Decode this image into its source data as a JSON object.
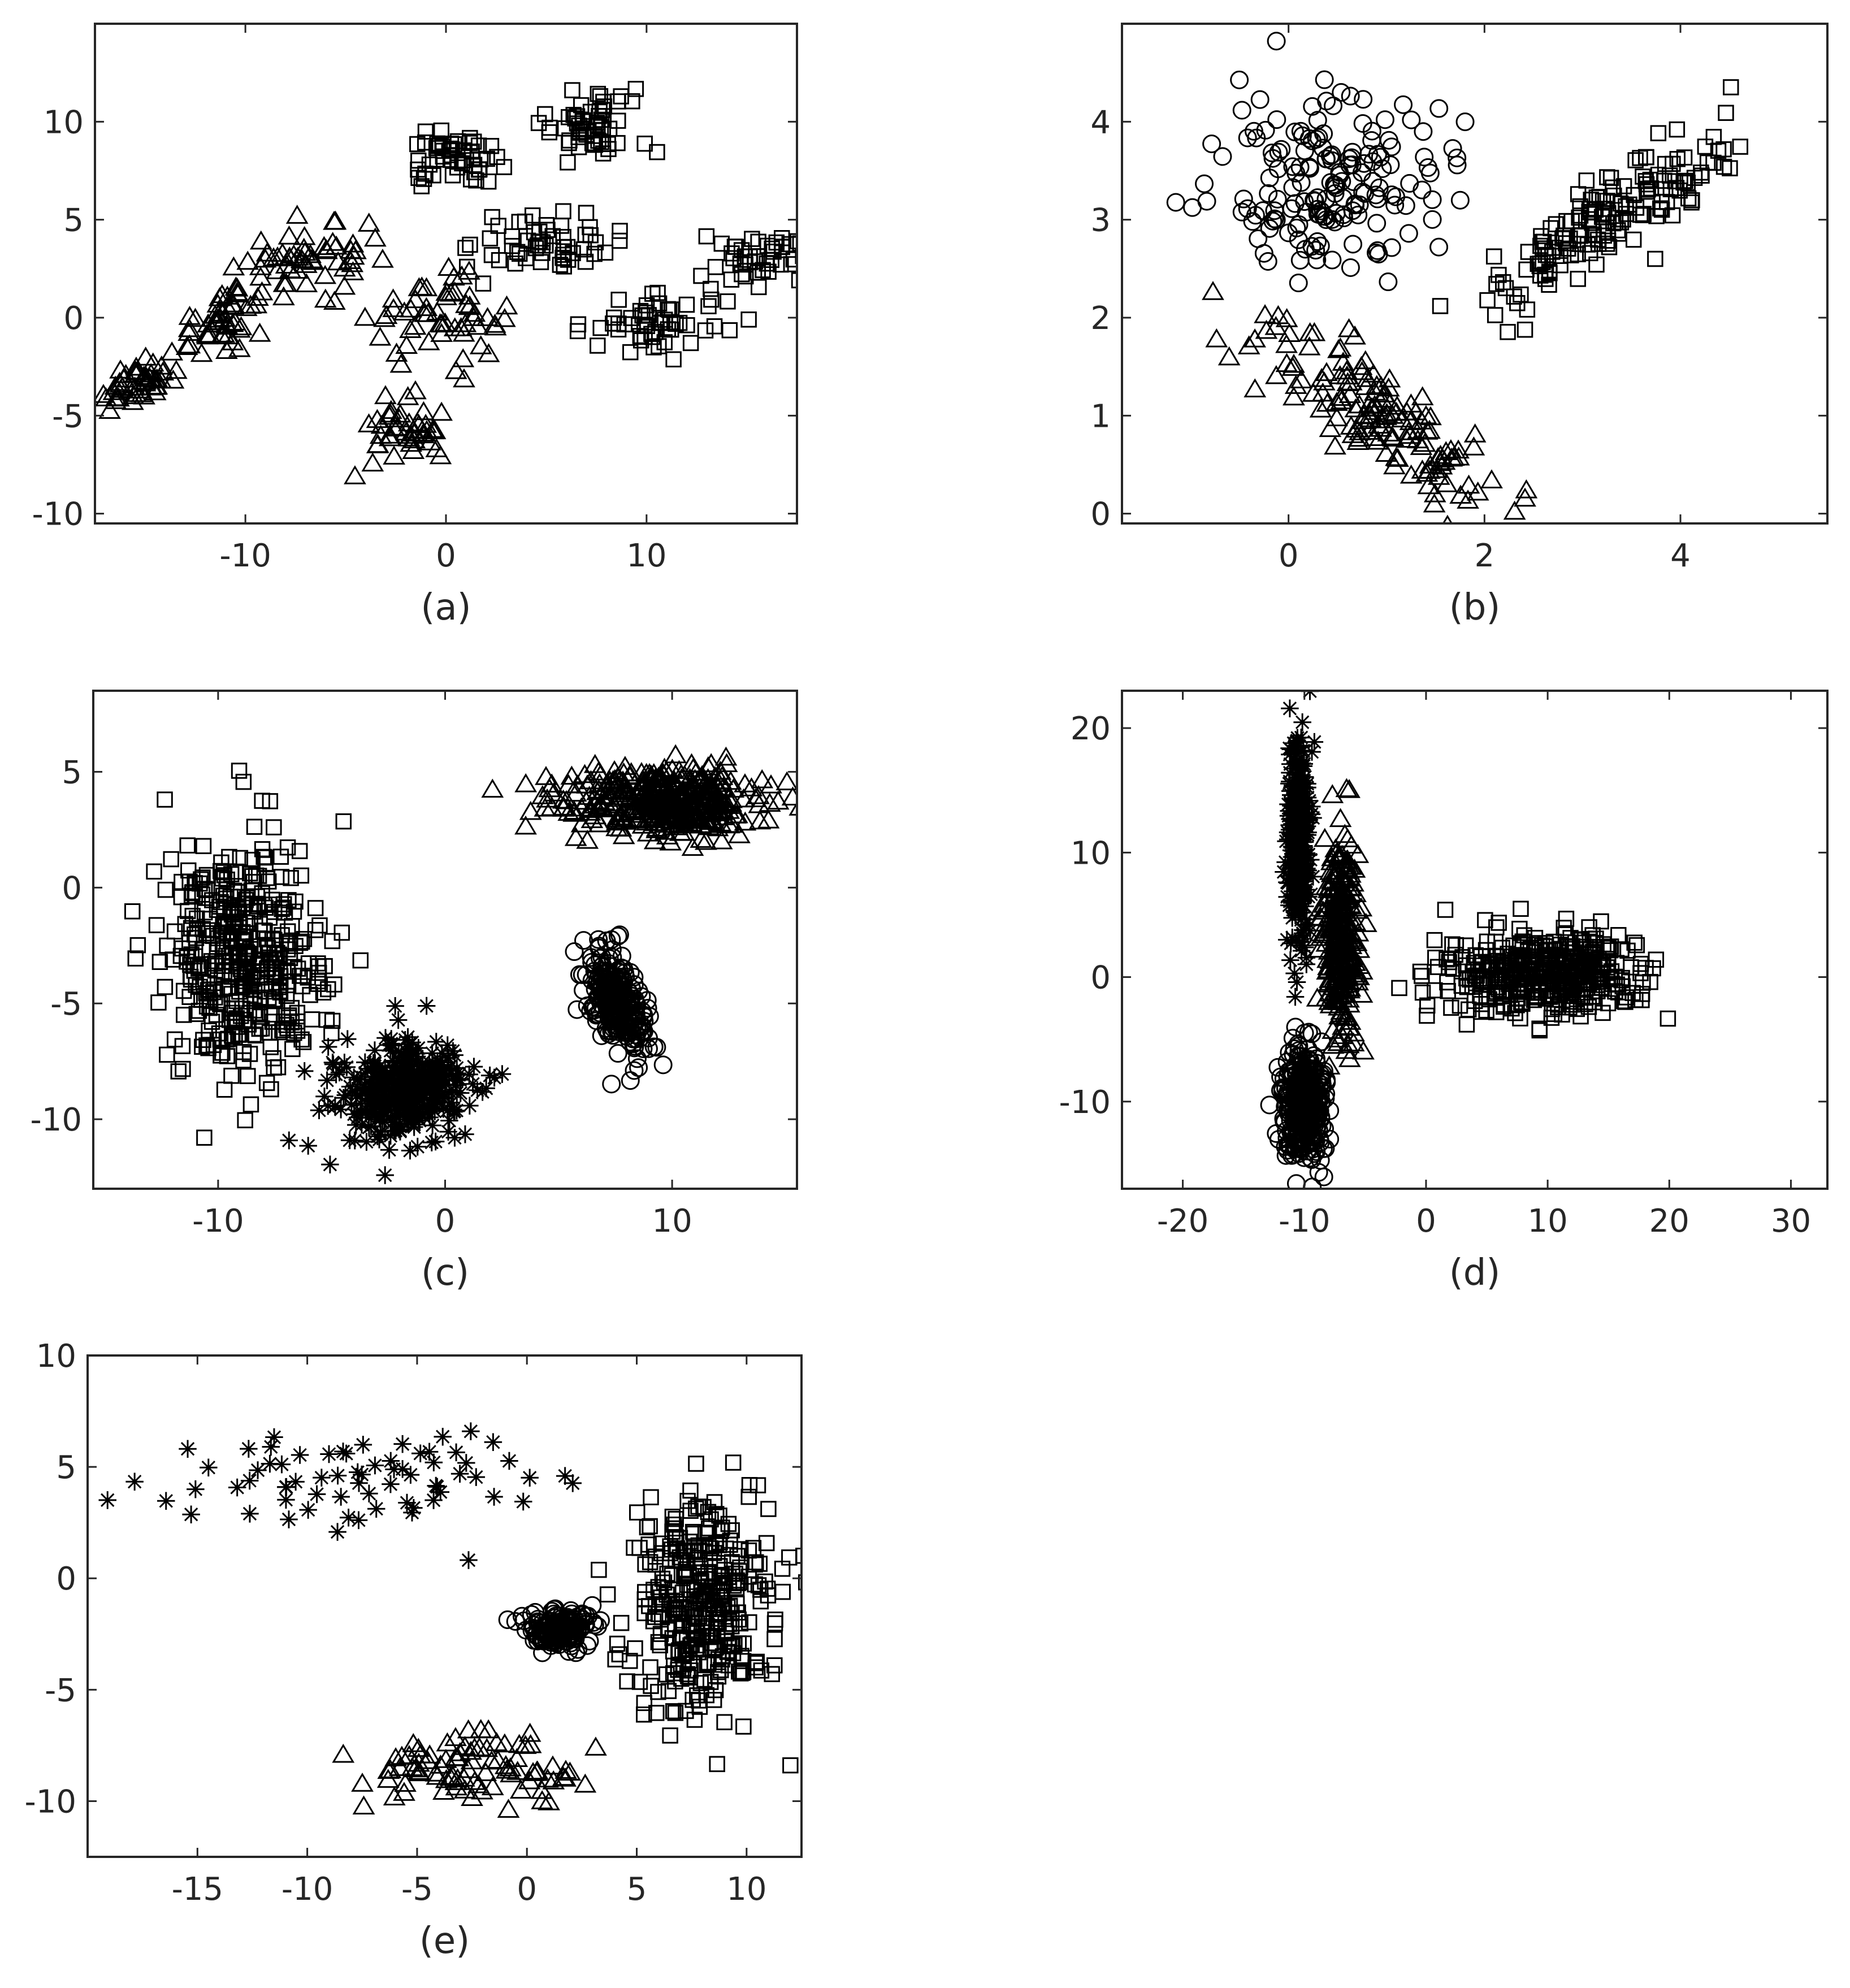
{
  "figure": {
    "background": "#ffffff",
    "marker_color": "#000000",
    "axis_color": "#262626"
  },
  "chart_data": [
    {
      "id": "a",
      "caption": "(a)",
      "type": "scatter",
      "xlim": [
        -17.5,
        17.5
      ],
      "ylim": [
        -10.5,
        15
      ],
      "xticks": [
        -10,
        0,
        10
      ],
      "yticks": [
        -10,
        -5,
        0,
        5,
        10
      ],
      "grid": false,
      "series": [
        {
          "marker": "triangle",
          "clusters": [
            {
              "cx": -15.5,
              "cy": -3.5,
              "sx": 1.1,
              "sy": 0.6,
              "rho": 0.4,
              "n": 45
            },
            {
              "cx": -11,
              "cy": 0.2,
              "sx": 1.3,
              "sy": 1.0,
              "rho": 0.6,
              "n": 50
            },
            {
              "cx": -6.5,
              "cy": 3.0,
              "sx": 1.7,
              "sy": 0.9,
              "rho": 0.3,
              "n": 55
            },
            {
              "cx": -0.5,
              "cy": 0.0,
              "sx": 1.6,
              "sy": 1.0,
              "rho": 0,
              "n": 55
            },
            {
              "cx": -2,
              "cy": -5.8,
              "sx": 1.3,
              "sy": 0.8,
              "rho": 0,
              "n": 45
            }
          ]
        },
        {
          "marker": "square",
          "clusters": [
            {
              "cx": 0.5,
              "cy": 8.0,
              "sx": 1.1,
              "sy": 0.7,
              "rho": 0,
              "n": 50
            },
            {
              "cx": 7.5,
              "cy": 10.0,
              "sx": 1.6,
              "sy": 0.8,
              "rho": 0,
              "n": 55
            },
            {
              "cx": 5.0,
              "cy": 3.8,
              "sx": 1.7,
              "sy": 0.9,
              "rho": 0,
              "n": 55
            },
            {
              "cx": 10.5,
              "cy": -0.3,
              "sx": 1.8,
              "sy": 0.7,
              "rho": 0,
              "n": 55
            },
            {
              "cx": 15.5,
              "cy": 3.2,
              "sx": 1.3,
              "sy": 0.8,
              "rho": 0.3,
              "n": 45
            }
          ]
        }
      ]
    },
    {
      "id": "b",
      "caption": "(b)",
      "type": "scatter",
      "xlim": [
        -1.7,
        5.5
      ],
      "ylim": [
        -0.1,
        5.0
      ],
      "xticks": [
        0,
        2,
        4
      ],
      "yticks": [
        0,
        1,
        2,
        3,
        4
      ],
      "grid": false,
      "series": [
        {
          "marker": "circle",
          "clusters": [
            {
              "cx": 0.45,
              "cy": 3.4,
              "sx": 0.55,
              "sy": 0.45,
              "rho": 0,
              "n": 170
            }
          ]
        },
        {
          "marker": "square",
          "clusters": [
            {
              "cx": 3.2,
              "cy": 3.0,
              "sx": 0.65,
              "sy": 0.45,
              "rho": 0.85,
              "n": 160
            }
          ]
        },
        {
          "marker": "triangle",
          "clusters": [
            {
              "cx": 1.0,
              "cy": 0.95,
              "sx": 0.65,
              "sy": 0.5,
              "rho": -0.85,
              "n": 150
            }
          ]
        }
      ]
    },
    {
      "id": "c",
      "caption": "(c)",
      "type": "scatter",
      "xlim": [
        -15.5,
        15.5
      ],
      "ylim": [
        -13,
        8.5
      ],
      "xticks": [
        -10,
        0,
        10
      ],
      "yticks": [
        -10,
        -5,
        0,
        5
      ],
      "grid": false,
      "series": [
        {
          "marker": "square",
          "clusters": [
            {
              "cx": -8.8,
              "cy": -3.2,
              "sx": 1.8,
              "sy": 2.6,
              "rho": 0,
              "n": 420
            }
          ]
        },
        {
          "marker": "star",
          "clusters": [
            {
              "cx": -1.8,
              "cy": -8.8,
              "sx": 1.5,
              "sy": 1.1,
              "rho": 0,
              "n": 380
            }
          ]
        },
        {
          "marker": "triangle",
          "clusters": [
            {
              "cx": 9.5,
              "cy": 3.8,
              "sx": 2.2,
              "sy": 0.75,
              "rho": 0,
              "n": 420
            }
          ]
        },
        {
          "marker": "circle",
          "clusters": [
            {
              "cx": 7.6,
              "cy": -5.0,
              "sx": 0.7,
              "sy": 1.2,
              "rho": -0.55,
              "n": 260
            }
          ]
        }
      ]
    },
    {
      "id": "d",
      "caption": "(d)",
      "type": "scatter",
      "xlim": [
        -25,
        33
      ],
      "ylim": [
        -17,
        23
      ],
      "xticks": [
        -20,
        -10,
        0,
        10,
        20,
        30
      ],
      "yticks": [
        -10,
        0,
        10,
        20
      ],
      "grid": false,
      "series": [
        {
          "marker": "star",
          "clusters": [
            {
              "cx": -10.5,
              "cy": 10.5,
              "sx": 0.45,
              "sy": 4.5,
              "rho": 0,
              "n": 320
            }
          ]
        },
        {
          "marker": "triangle",
          "clusters": [
            {
              "cx": -7.0,
              "cy": 3.5,
              "sx": 0.75,
              "sy": 4.0,
              "rho": 0,
              "n": 280
            }
          ]
        },
        {
          "marker": "circle",
          "clusters": [
            {
              "cx": -10.0,
              "cy": -10.0,
              "sx": 0.9,
              "sy": 2.4,
              "rho": 0,
              "n": 360
            }
          ]
        },
        {
          "marker": "square",
          "clusters": [
            {
              "cx": 9.5,
              "cy": 0.3,
              "sx": 3.8,
              "sy": 1.7,
              "rho": 0,
              "n": 420
            }
          ]
        }
      ]
    },
    {
      "id": "e",
      "caption": "(e)",
      "type": "scatter",
      "xlim": [
        -20,
        12.5
      ],
      "ylim": [
        -12.5,
        10
      ],
      "xticks": [
        -15,
        -10,
        -5,
        0,
        5,
        10
      ],
      "yticks": [
        -10,
        -5,
        0,
        5,
        10
      ],
      "grid": false,
      "series": [
        {
          "marker": "star",
          "clusters": [
            {
              "cx": -8,
              "cy": 4.5,
              "sx": 4.5,
              "sy": 1.1,
              "rho": 0,
              "n": 70
            }
          ]
        },
        {
          "marker": "circle",
          "clusters": [
            {
              "cx": 1.5,
              "cy": -2.3,
              "sx": 0.7,
              "sy": 0.45,
              "rho": -0.2,
              "n": 180
            }
          ]
        },
        {
          "marker": "square",
          "clusters": [
            {
              "cx": 8.0,
              "cy": -1.0,
              "sx": 1.6,
              "sy": 2.5,
              "rho": 0,
              "n": 360
            }
          ]
        },
        {
          "marker": "triangle",
          "clusters": [
            {
              "cx": -2.5,
              "cy": -8.5,
              "sx": 2.4,
              "sy": 0.8,
              "rho": 0,
              "n": 90
            }
          ]
        }
      ]
    }
  ]
}
